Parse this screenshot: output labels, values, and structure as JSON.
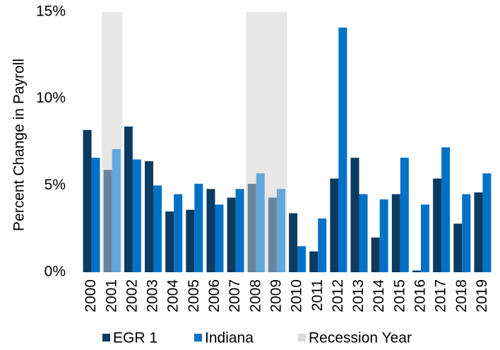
{
  "chart_data": {
    "type": "bar",
    "y_axis_label": "Percent Change in Payroll",
    "categories": [
      "2000",
      "2001",
      "2002",
      "2003",
      "2004",
      "2005",
      "2006",
      "2007",
      "2008",
      "2009",
      "2010",
      "2011",
      "2012",
      "2013",
      "2014",
      "2015",
      "2016",
      "2017",
      "2018",
      "2019"
    ],
    "series": [
      {
        "name": "EGR 1",
        "color": "#0c3b62",
        "values": [
          8.2,
          5.9,
          8.4,
          6.4,
          3.5,
          3.6,
          4.8,
          4.3,
          5.1,
          4.3,
          3.4,
          1.2,
          5.4,
          6.6,
          2.0,
          4.5,
          0.1,
          5.4,
          2.8,
          4.6
        ]
      },
      {
        "name": "Indiana",
        "color": "#0072c6",
        "values": [
          6.6,
          7.1,
          6.5,
          5.0,
          4.5,
          5.1,
          3.9,
          4.8,
          5.7,
          4.8,
          1.5,
          3.1,
          14.1,
          4.5,
          4.2,
          6.6,
          3.9,
          7.2,
          4.5,
          5.7
        ]
      }
    ],
    "recession": {
      "name": "Recession Year",
      "color": "#d9d9d9",
      "years": [
        "2001",
        "2008",
        "2009"
      ]
    },
    "ylim": [
      0,
      15
    ],
    "yticks": [
      {
        "value": 0,
        "label": "0%"
      },
      {
        "value": 5,
        "label": "5%"
      },
      {
        "value": 10,
        "label": "10%"
      },
      {
        "value": 15,
        "label": "15%"
      }
    ]
  }
}
